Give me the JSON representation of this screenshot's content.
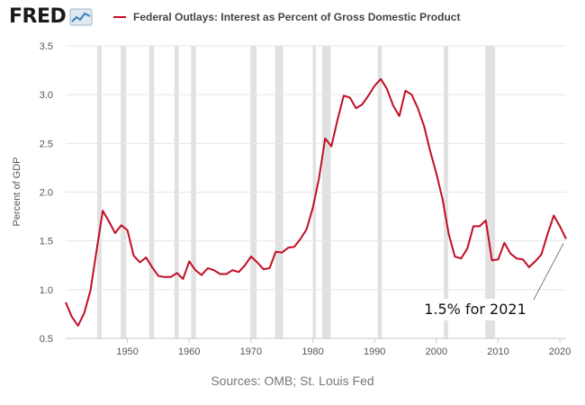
{
  "header": {
    "logo_text": "FRED",
    "logo_icon": "trend-line-icon"
  },
  "colors": {
    "series": "#c10e25",
    "recession": "#e1e1e1",
    "grid": "#e6e6e6"
  },
  "source_text": "Sources: OMB; St. Louis Fed",
  "chart_data": {
    "type": "line",
    "title": "",
    "xlabel": "",
    "ylabel": "Percent of GDP",
    "xlim": [
      1940,
      2021
    ],
    "ylim": [
      0.5,
      3.5
    ],
    "grid": true,
    "legend_position": "top",
    "x_ticks": [
      "1950",
      "1960",
      "1970",
      "1980",
      "1990",
      "2000",
      "2010",
      "2020"
    ],
    "y_ticks": [
      "0.5",
      "1.0",
      "1.5",
      "2.0",
      "2.5",
      "3.0",
      "3.5"
    ],
    "recessions": [
      [
        1945.1,
        1945.8
      ],
      [
        1948.9,
        1949.8
      ],
      [
        1953.5,
        1954.3
      ],
      [
        1957.6,
        1958.3
      ],
      [
        1960.3,
        1961.1
      ],
      [
        1969.9,
        1970.9
      ],
      [
        1973.9,
        1975.2
      ],
      [
        1980.0,
        1980.5
      ],
      [
        1981.5,
        1982.9
      ],
      [
        1990.5,
        1991.2
      ],
      [
        2001.2,
        2001.9
      ],
      [
        2007.9,
        2009.5
      ]
    ],
    "series": [
      {
        "name": "Federal Outlays: Interest as Percent of Gross Domestic Product",
        "x": [
          1940,
          1941,
          1942,
          1943,
          1944,
          1945,
          1946,
          1947,
          1948,
          1949,
          1950,
          1951,
          1952,
          1953,
          1954,
          1955,
          1956,
          1957,
          1958,
          1959,
          1960,
          1961,
          1962,
          1963,
          1964,
          1965,
          1966,
          1967,
          1968,
          1969,
          1970,
          1971,
          1972,
          1973,
          1974,
          1975,
          1976,
          1977,
          1978,
          1979,
          1980,
          1981,
          1982,
          1983,
          1984,
          1985,
          1986,
          1987,
          1988,
          1989,
          1990,
          1991,
          1992,
          1993,
          1994,
          1995,
          1996,
          1997,
          1998,
          1999,
          2000,
          2001,
          2002,
          2003,
          2004,
          2005,
          2006,
          2007,
          2008,
          2009,
          2010,
          2011,
          2012,
          2013,
          2014,
          2015,
          2016,
          2017,
          2018,
          2019,
          2020,
          2021
        ],
        "values": [
          0.87,
          0.72,
          0.63,
          0.76,
          0.99,
          1.4,
          1.81,
          1.7,
          1.58,
          1.66,
          1.61,
          1.35,
          1.28,
          1.33,
          1.23,
          1.14,
          1.13,
          1.13,
          1.17,
          1.11,
          1.29,
          1.2,
          1.15,
          1.22,
          1.2,
          1.16,
          1.16,
          1.2,
          1.18,
          1.25,
          1.34,
          1.28,
          1.21,
          1.22,
          1.39,
          1.38,
          1.43,
          1.44,
          1.52,
          1.62,
          1.84,
          2.14,
          2.55,
          2.47,
          2.74,
          2.99,
          2.97,
          2.86,
          2.9,
          2.99,
          3.09,
          3.16,
          3.06,
          2.89,
          2.78,
          3.04,
          3.0,
          2.86,
          2.68,
          2.42,
          2.19,
          1.93,
          1.57,
          1.34,
          1.32,
          1.42,
          1.65,
          1.65,
          1.71,
          1.3,
          1.31,
          1.48,
          1.37,
          1.32,
          1.31,
          1.23,
          1.29,
          1.36,
          1.57,
          1.76,
          1.65,
          1.52
        ]
      }
    ],
    "annotation": {
      "text": "1.5% for 2021",
      "x": 2021,
      "y": 1.52
    }
  }
}
